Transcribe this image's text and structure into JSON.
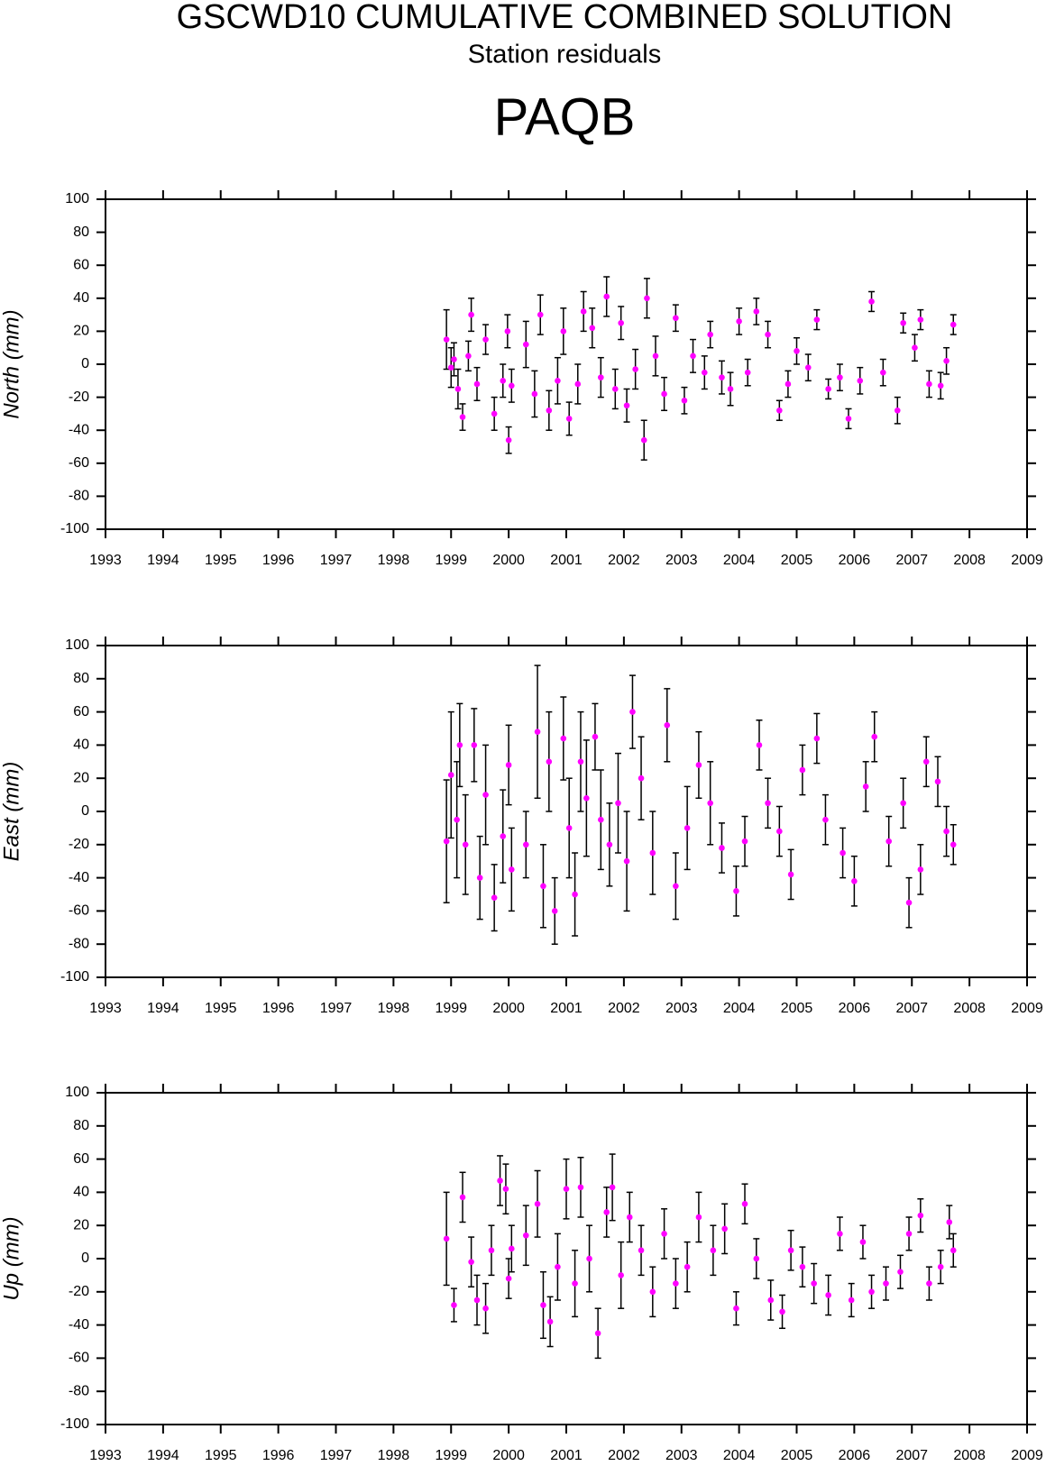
{
  "header": {
    "title": "GSCWD10 CUMULATIVE COMBINED SOLUTION",
    "subtitle": "Station residuals",
    "station": "PAQB"
  },
  "chart_data": [
    {
      "type": "scatter",
      "y_label": "North (mm)",
      "color": "#ff00ff",
      "xlim": [
        1993,
        2009
      ],
      "xticks": [
        1993,
        1994,
        1995,
        1996,
        1997,
        1998,
        1999,
        2000,
        2001,
        2002,
        2003,
        2004,
        2005,
        2006,
        2007,
        2008,
        2009
      ],
      "ylim": [
        -100,
        100
      ],
      "yticks": [
        -100,
        -80,
        -60,
        -40,
        -20,
        0,
        20,
        40,
        60,
        80,
        100
      ],
      "x": [
        1998.92,
        1999.0,
        1999.05,
        1999.12,
        1999.2,
        1999.3,
        1999.35,
        1999.45,
        1999.6,
        1999.75,
        1999.9,
        1999.98,
        2000.0,
        2000.05,
        2000.3,
        2000.45,
        2000.55,
        2000.7,
        2000.85,
        2000.95,
        2001.05,
        2001.2,
        2001.3,
        2001.45,
        2001.6,
        2001.7,
        2001.85,
        2001.95,
        2002.05,
        2002.2,
        2002.35,
        2002.4,
        2002.55,
        2002.7,
        2002.9,
        2003.05,
        2003.2,
        2003.4,
        2003.5,
        2003.7,
        2003.85,
        2004.0,
        2004.15,
        2004.3,
        2004.5,
        2004.7,
        2004.85,
        2005.0,
        2005.2,
        2005.35,
        2005.55,
        2005.75,
        2005.9,
        2006.1,
        2006.3,
        2006.5,
        2006.75,
        2006.85,
        2007.05,
        2007.15,
        2007.3,
        2007.5,
        2007.6,
        2007.72
      ],
      "values": [
        15,
        -2,
        3,
        -15,
        -32,
        5,
        30,
        -12,
        15,
        -30,
        -10,
        20,
        -46,
        -13,
        12,
        -18,
        30,
        -28,
        -10,
        20,
        -33,
        -12,
        32,
        22,
        -8,
        41,
        -15,
        25,
        -25,
        -3,
        -46,
        40,
        5,
        -18,
        28,
        -22,
        5,
        -5,
        18,
        -8,
        -15,
        26,
        -5,
        32,
        18,
        -28,
        -12,
        8,
        -2,
        27,
        -15,
        -8,
        -33,
        -10,
        38,
        -5,
        -28,
        25,
        10,
        27,
        -12,
        -13,
        2,
        24
      ],
      "errors": [
        18,
        12,
        10,
        12,
        8,
        9,
        10,
        10,
        9,
        10,
        10,
        10,
        8,
        10,
        14,
        14,
        12,
        12,
        14,
        14,
        10,
        12,
        12,
        12,
        12,
        12,
        12,
        10,
        10,
        12,
        12,
        12,
        12,
        10,
        8,
        8,
        10,
        10,
        8,
        10,
        10,
        8,
        8,
        8,
        8,
        6,
        8,
        8,
        8,
        6,
        6,
        8,
        6,
        8,
        6,
        8,
        8,
        6,
        8,
        6,
        8,
        8,
        8,
        6
      ]
    },
    {
      "type": "scatter",
      "y_label": "East (mm)",
      "color": "#ff00ff",
      "xlim": [
        1993,
        2009
      ],
      "xticks": [
        1993,
        1994,
        1995,
        1996,
        1997,
        1998,
        1999,
        2000,
        2001,
        2002,
        2003,
        2004,
        2005,
        2006,
        2007,
        2008,
        2009
      ],
      "ylim": [
        -100,
        100
      ],
      "yticks": [
        -100,
        -80,
        -60,
        -40,
        -20,
        0,
        20,
        40,
        60,
        80,
        100
      ],
      "x": [
        1998.92,
        1999.0,
        1999.1,
        1999.15,
        1999.25,
        1999.4,
        1999.5,
        1999.6,
        1999.75,
        1999.9,
        2000.0,
        2000.05,
        2000.3,
        2000.5,
        2000.6,
        2000.7,
        2000.8,
        2000.95,
        2001.05,
        2001.15,
        2001.25,
        2001.35,
        2001.5,
        2001.6,
        2001.75,
        2001.9,
        2002.05,
        2002.15,
        2002.3,
        2002.5,
        2002.75,
        2002.9,
        2003.1,
        2003.3,
        2003.5,
        2003.7,
        2003.95,
        2004.1,
        2004.35,
        2004.5,
        2004.7,
        2004.9,
        2005.1,
        2005.35,
        2005.5,
        2005.8,
        2006.0,
        2006.2,
        2006.35,
        2006.6,
        2006.85,
        2006.95,
        2007.15,
        2007.25,
        2007.45,
        2007.6,
        2007.72
      ],
      "values": [
        -18,
        22,
        -5,
        40,
        -20,
        40,
        -40,
        10,
        -52,
        -15,
        28,
        -35,
        -20,
        48,
        -45,
        30,
        -60,
        44,
        -10,
        -50,
        30,
        8,
        45,
        -5,
        -20,
        5,
        -30,
        60,
        20,
        -25,
        52,
        -45,
        -10,
        28,
        5,
        -22,
        -48,
        -18,
        40,
        5,
        -12,
        -38,
        25,
        44,
        -5,
        -25,
        -42,
        15,
        45,
        -18,
        5,
        -55,
        -35,
        30,
        18,
        -12,
        -20
      ],
      "errors": [
        37,
        38,
        35,
        25,
        30,
        22,
        25,
        30,
        20,
        28,
        24,
        25,
        20,
        40,
        25,
        30,
        20,
        25,
        30,
        25,
        30,
        35,
        20,
        30,
        25,
        30,
        30,
        22,
        25,
        25,
        22,
        20,
        25,
        20,
        25,
        15,
        15,
        15,
        15,
        15,
        15,
        15,
        15,
        15,
        15,
        15,
        15,
        15,
        15,
        15,
        15,
        15,
        15,
        15,
        15,
        15,
        12
      ]
    },
    {
      "type": "scatter",
      "y_label": "Up (mm)",
      "color": "#ff00ff",
      "xlim": [
        1993,
        2009
      ],
      "xticks": [
        1993,
        1994,
        1995,
        1996,
        1997,
        1998,
        1999,
        2000,
        2001,
        2002,
        2003,
        2004,
        2005,
        2006,
        2007,
        2008,
        2009
      ],
      "ylim": [
        -100,
        100
      ],
      "yticks": [
        -100,
        -80,
        -60,
        -40,
        -20,
        0,
        20,
        40,
        60,
        80,
        100
      ],
      "x": [
        1998.92,
        1999.05,
        1999.2,
        1999.35,
        1999.45,
        1999.6,
        1999.7,
        1999.85,
        1999.95,
        2000.0,
        2000.05,
        2000.3,
        2000.5,
        2000.6,
        2000.72,
        2000.85,
        2001.0,
        2001.15,
        2001.25,
        2001.4,
        2001.55,
        2001.7,
        2001.8,
        2001.95,
        2002.1,
        2002.3,
        2002.5,
        2002.7,
        2002.9,
        2003.1,
        2003.3,
        2003.55,
        2003.75,
        2003.95,
        2004.1,
        2004.3,
        2004.55,
        2004.75,
        2004.9,
        2005.1,
        2005.3,
        2005.55,
        2005.75,
        2005.95,
        2006.15,
        2006.3,
        2006.55,
        2006.8,
        2006.95,
        2007.15,
        2007.3,
        2007.5,
        2007.65,
        2007.72
      ],
      "values": [
        12,
        -28,
        37,
        -2,
        -25,
        -30,
        5,
        47,
        42,
        -12,
        6,
        14,
        33,
        -28,
        -38,
        -5,
        42,
        -15,
        43,
        0,
        -45,
        28,
        43,
        -10,
        25,
        5,
        -20,
        15,
        -15,
        -5,
        25,
        5,
        18,
        -30,
        33,
        0,
        -25,
        -32,
        5,
        -5,
        -15,
        -22,
        15,
        -25,
        10,
        -20,
        -15,
        -8,
        15,
        26,
        -15,
        -5,
        22,
        5
      ],
      "errors": [
        28,
        10,
        15,
        15,
        15,
        15,
        15,
        15,
        15,
        12,
        14,
        18,
        20,
        20,
        15,
        20,
        18,
        20,
        18,
        20,
        15,
        15,
        20,
        20,
        15,
        15,
        15,
        15,
        15,
        15,
        15,
        15,
        15,
        10,
        12,
        12,
        12,
        10,
        12,
        12,
        12,
        12,
        10,
        10,
        10,
        10,
        10,
        10,
        10,
        10,
        10,
        10,
        10,
        10
      ]
    }
  ]
}
